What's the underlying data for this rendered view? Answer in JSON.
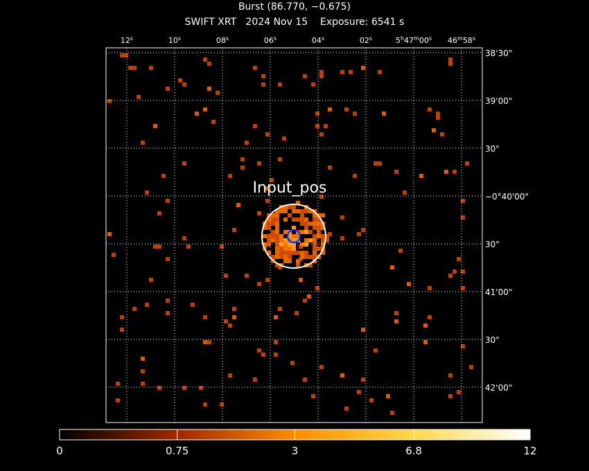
{
  "header": {
    "title": "Burst (86.770, −0.675)",
    "subtitle": "SWIFT XRT   2024 Nov 15    Exposure: 6541 s"
  },
  "ra_ticks": [
    [
      "12",
      "s"
    ],
    [
      "10",
      "s"
    ],
    [
      "08",
      "s"
    ],
    [
      "06",
      "s"
    ],
    [
      "04",
      "s"
    ],
    [
      "02",
      "s"
    ],
    [
      "5",
      "h",
      "47",
      "m",
      "00",
      "s"
    ],
    [
      "46",
      "m",
      "58",
      "s"
    ]
  ],
  "dec_ticks": [
    "38'30\"",
    "39'00\"",
    "30\"",
    "−0°40'00\"",
    "30\"",
    "41'00\"",
    "30\"",
    "42'00\""
  ],
  "source_label": "Input_pos",
  "colorbar": {
    "range": [
      0,
      12
    ],
    "scale": "sqrt",
    "ticks": [
      0,
      0.75,
      3,
      6.8,
      12
    ]
  }
}
